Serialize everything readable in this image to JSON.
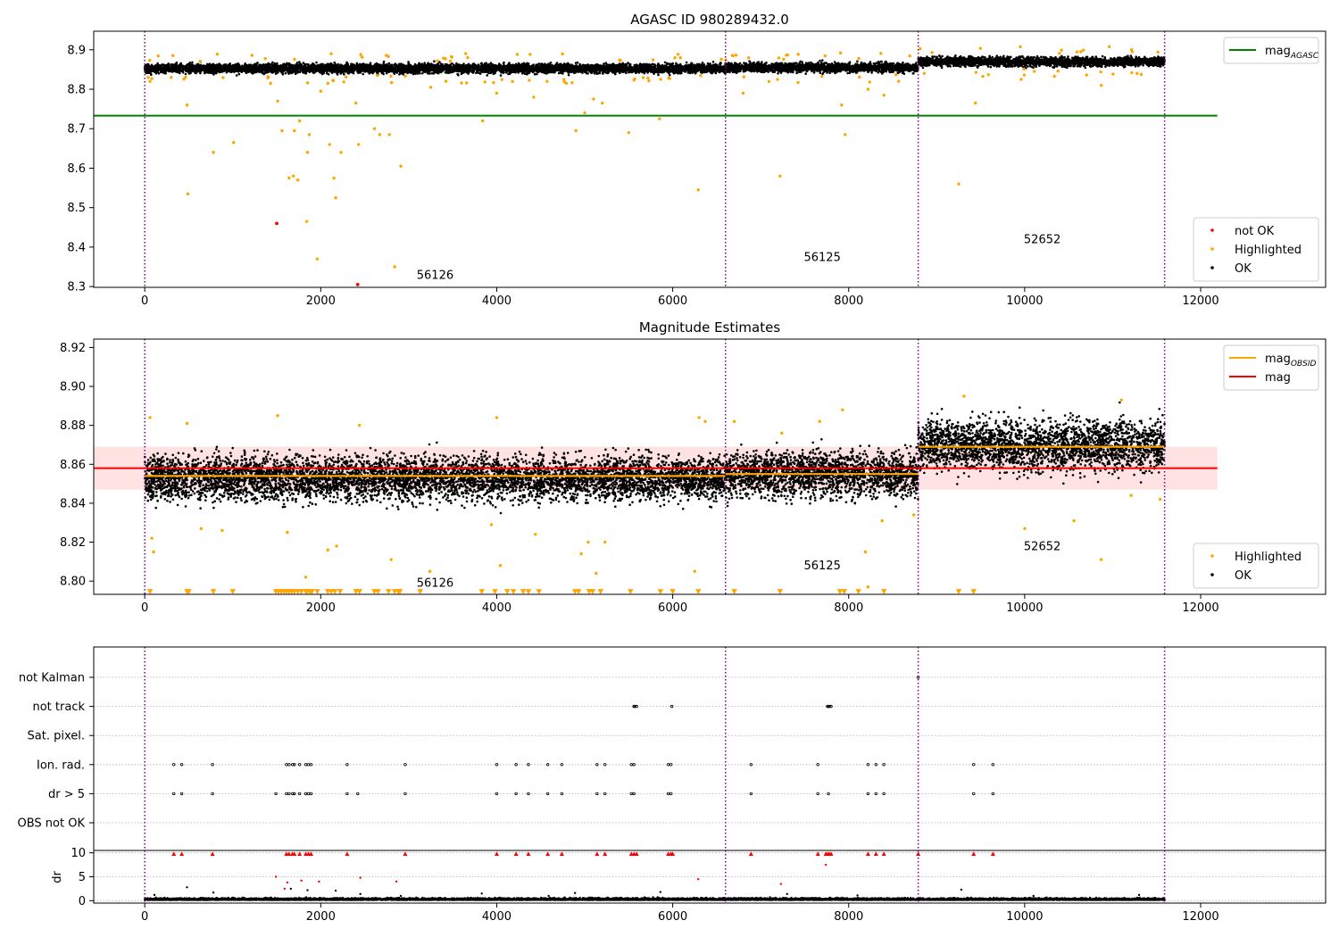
{
  "colors": {
    "ok": "#000000",
    "highlighted": "#ffa500",
    "not_ok": "#ff0000",
    "agasc_line": "#008000",
    "obsid_line": "#ffa500",
    "mag_line": "#ff0000",
    "mag_band": "#ffdddd",
    "obsid_boundary": "#800080",
    "grid": "#b0b0b0"
  },
  "chart_data": [
    {
      "id": "agasc",
      "type": "scatter",
      "title": "AGASC ID 980289432.0",
      "xlim": [
        -580,
        13420
      ],
      "ylim": [
        8.298,
        8.947
      ],
      "xticks": [
        0,
        2000,
        4000,
        6000,
        8000,
        10000,
        12000
      ],
      "xtick_labels": [
        "0",
        "2000",
        "4000",
        "6000",
        "8000",
        "10000",
        "12000"
      ],
      "yticks": [
        8.3,
        8.4,
        8.5,
        8.6,
        8.7,
        8.8,
        8.9
      ],
      "ytick_labels": [
        "8.3",
        "8.4",
        "8.5",
        "8.6",
        "8.7",
        "8.8",
        "8.9"
      ],
      "obsid_boundaries": [
        0,
        6600,
        8790,
        11590
      ],
      "obsid_labels": [
        {
          "text": "56126",
          "x": 3300,
          "y": 8.32
        },
        {
          "text": "56125",
          "x": 7700,
          "y": 8.365
        },
        {
          "text": "52652",
          "x": 10200,
          "y": 8.41
        }
      ],
      "segments": [
        {
          "x0": 0,
          "x1": 6600,
          "center": 8.853,
          "spread": 0.008
        },
        {
          "x0": 6600,
          "x1": 8790,
          "center": 8.855,
          "spread": 0.008
        },
        {
          "x0": 8790,
          "x1": 11590,
          "center": 8.87,
          "spread": 0.008
        }
      ],
      "mag_agasc": 8.733,
      "mag_agasc_x": [
        -580,
        12190
      ],
      "not_ok_points": [
        [
          1500,
          8.46
        ],
        [
          2420,
          8.305
        ]
      ],
      "highlighted_points": [
        [
          480,
          8.76
        ],
        [
          490,
          8.535
        ],
        [
          780,
          8.64
        ],
        [
          1010,
          8.665
        ],
        [
          1510,
          8.77
        ],
        [
          1560,
          8.695
        ],
        [
          1640,
          8.575
        ],
        [
          1690,
          8.58
        ],
        [
          1700,
          8.695
        ],
        [
          1740,
          8.57
        ],
        [
          1760,
          8.72
        ],
        [
          1840,
          8.465
        ],
        [
          1850,
          8.64
        ],
        [
          1870,
          8.685
        ],
        [
          1960,
          8.37
        ],
        [
          2100,
          8.66
        ],
        [
          2150,
          8.575
        ],
        [
          2170,
          8.525
        ],
        [
          2230,
          8.64
        ],
        [
          2400,
          8.765
        ],
        [
          2430,
          8.66
        ],
        [
          2610,
          8.7
        ],
        [
          2670,
          8.685
        ],
        [
          2780,
          8.685
        ],
        [
          2840,
          8.35
        ],
        [
          2910,
          8.605
        ],
        [
          3840,
          8.72
        ],
        [
          4900,
          8.695
        ],
        [
          5000,
          8.74
        ],
        [
          5500,
          8.69
        ],
        [
          5850,
          8.725
        ],
        [
          6290,
          8.545
        ],
        [
          7220,
          8.58
        ],
        [
          7960,
          8.685
        ],
        [
          9250,
          8.56
        ],
        [
          9440,
          8.765
        ],
        [
          1430,
          8.815
        ],
        [
          2080,
          8.815
        ],
        [
          3250,
          8.805
        ],
        [
          4420,
          8.78
        ],
        [
          5200,
          8.765
        ],
        [
          6800,
          8.79
        ],
        [
          7920,
          8.76
        ],
        [
          8220,
          8.8
        ],
        [
          8400,
          8.785
        ],
        [
          9960,
          8.825
        ],
        [
          10870,
          8.81
        ],
        [
          40,
          8.83
        ],
        [
          60,
          8.82
        ],
        [
          300,
          8.83
        ],
        [
          2000,
          8.795
        ],
        [
          4000,
          8.79
        ],
        [
          5100,
          8.775
        ]
      ],
      "legends": [
        {
          "position": "upper-right",
          "entries": [
            {
              "label": "mag",
              "subscript": "AGASC",
              "style": "line",
              "color_key": "agasc_line"
            }
          ]
        },
        {
          "position": "lower-right",
          "entries": [
            {
              "label": "not OK",
              "style": "dot",
              "color_key": "not_ok"
            },
            {
              "label": "Highlighted",
              "style": "dot",
              "color_key": "highlighted"
            },
            {
              "label": "OK",
              "style": "dot",
              "color_key": "ok"
            }
          ]
        }
      ]
    },
    {
      "id": "estimates",
      "type": "scatter",
      "title": "Magnitude Estimates",
      "xlim": [
        -580,
        13420
      ],
      "ylim": [
        8.7932,
        8.9243
      ],
      "xticks": [
        0,
        2000,
        4000,
        6000,
        8000,
        10000,
        12000
      ],
      "xtick_labels": [
        "0",
        "2000",
        "4000",
        "6000",
        "8000",
        "10000",
        "12000"
      ],
      "yticks": [
        8.8,
        8.82,
        8.84,
        8.86,
        8.88,
        8.9,
        8.92
      ],
      "ytick_labels": [
        "8.80",
        "8.82",
        "8.84",
        "8.86",
        "8.88",
        "8.90",
        "8.92"
      ],
      "obsid_boundaries": [
        0,
        6600,
        8790,
        11590
      ],
      "obsid_labels": [
        {
          "text": "56126",
          "x": 3300,
          "y": 8.797
        },
        {
          "text": "56125",
          "x": 7700,
          "y": 8.806
        },
        {
          "text": "52652",
          "x": 10200,
          "y": 8.816
        }
      ],
      "segments": [
        {
          "x0": 0,
          "x1": 6600,
          "center": 8.853,
          "spread": 0.008
        },
        {
          "x0": 6600,
          "x1": 8790,
          "center": 8.855,
          "spread": 0.008
        },
        {
          "x0": 8790,
          "x1": 11590,
          "center": 8.87,
          "spread": 0.009
        }
      ],
      "mag": 8.858,
      "mag_x": [
        -580,
        12190
      ],
      "mag_band": [
        8.847,
        8.869
      ],
      "mag_obsid": [
        {
          "x0": 0,
          "x1": 6600,
          "value": 8.854
        },
        {
          "x0": 6600,
          "x1": 8790,
          "value": 8.855
        },
        {
          "x0": 8790,
          "x1": 11590,
          "value": 8.869
        }
      ],
      "highlighted_points": [
        [
          60,
          8.884
        ],
        [
          80,
          8.822
        ],
        [
          100,
          8.815
        ],
        [
          480,
          8.881
        ],
        [
          640,
          8.827
        ],
        [
          880,
          8.826
        ],
        [
          1510,
          8.885
        ],
        [
          1620,
          8.825
        ],
        [
          1830,
          8.802
        ],
        [
          2080,
          8.816
        ],
        [
          2180,
          8.818
        ],
        [
          2440,
          8.88
        ],
        [
          2800,
          8.811
        ],
        [
          3240,
          8.805
        ],
        [
          3940,
          8.829
        ],
        [
          4000,
          8.884
        ],
        [
          4040,
          8.808
        ],
        [
          4440,
          8.824
        ],
        [
          4960,
          8.814
        ],
        [
          5040,
          8.82
        ],
        [
          5130,
          8.804
        ],
        [
          5230,
          8.82
        ],
        [
          6250,
          8.805
        ],
        [
          6300,
          8.884
        ],
        [
          6370,
          8.882
        ],
        [
          6700,
          8.882
        ],
        [
          7240,
          8.876
        ],
        [
          7670,
          8.882
        ],
        [
          7930,
          8.888
        ],
        [
          8190,
          8.815
        ],
        [
          8220,
          8.797
        ],
        [
          8380,
          8.831
        ],
        [
          8740,
          8.834
        ],
        [
          9310,
          8.895
        ],
        [
          10000,
          8.827
        ],
        [
          10560,
          8.831
        ],
        [
          10870,
          8.811
        ],
        [
          11100,
          8.893
        ],
        [
          11210,
          8.844
        ],
        [
          11540,
          8.842
        ]
      ],
      "lower_limit_x": [
        60,
        480,
        500,
        780,
        1000,
        1490,
        1520,
        1550,
        1580,
        1610,
        1640,
        1670,
        1700,
        1740,
        1780,
        1830,
        1850,
        1880,
        1900,
        1960,
        2080,
        2120,
        2160,
        2220,
        2400,
        2440,
        2610,
        2650,
        2770,
        2840,
        2880,
        2900,
        3130,
        3830,
        3980,
        4120,
        4190,
        4300,
        4360,
        4480,
        4890,
        4930,
        5050,
        5090,
        5180,
        5520,
        5860,
        6000,
        6290,
        6700,
        7220,
        7900,
        7950,
        8110,
        8400,
        9250,
        9420
      ],
      "lower_limit_y": 8.7945,
      "legends": [
        {
          "position": "upper-right",
          "entries": [
            {
              "label": "mag",
              "subscript": "OBSID",
              "style": "line",
              "color_key": "obsid_line"
            },
            {
              "label": "mag",
              "style": "line",
              "color_key": "mag_line"
            }
          ]
        },
        {
          "position": "lower-right",
          "entries": [
            {
              "label": "Highlighted",
              "style": "dot",
              "color_key": "highlighted"
            },
            {
              "label": "OK",
              "style": "dot",
              "color_key": "ok"
            }
          ]
        }
      ]
    },
    {
      "id": "flags",
      "type": "scatter",
      "title": "",
      "xlim": [
        -580,
        13420
      ],
      "categories": [
        "OBS not OK",
        "dr > 5",
        "Ion. rad.",
        "Sat. pixel.",
        "not track",
        "not Kalman"
      ],
      "points": {
        "Ion. rad.": [
          330,
          420,
          770,
          1610,
          1640,
          1680,
          1700,
          1760,
          1830,
          1860,
          1890,
          2300,
          2960,
          4000,
          4220,
          4360,
          4580,
          4740,
          5140,
          5230,
          5530,
          5560,
          5950,
          5980,
          6890,
          7650,
          8220,
          8310,
          8400,
          9420,
          9640
        ],
        "dr > 5": [
          330,
          420,
          770,
          1490,
          1610,
          1640,
          1680,
          1700,
          1760,
          1830,
          1860,
          1890,
          2300,
          2420,
          2960,
          4000,
          4220,
          4360,
          4580,
          4740,
          5140,
          5230,
          5530,
          5560,
          5950,
          5980,
          6890,
          7650,
          7770,
          8220,
          8310,
          8400,
          9420,
          9640
        ],
        "not track": [
          5560,
          5570,
          5590,
          5990,
          7760,
          7770,
          7780,
          7800
        ],
        "not Kalman": [
          8790
        ]
      }
    },
    {
      "id": "dr",
      "type": "scatter",
      "title": "",
      "xlim": [
        -580,
        13420
      ],
      "ylim": [
        -0.5,
        10.5
      ],
      "xticks": [
        0,
        2000,
        4000,
        6000,
        8000,
        10000,
        12000
      ],
      "xtick_labels": [
        "0",
        "2000",
        "4000",
        "6000",
        "8000",
        "10000",
        "12000"
      ],
      "yticks": [
        0,
        5,
        10
      ],
      "ytick_labels": [
        "0",
        "5",
        "10"
      ],
      "ylabel": "dr",
      "capped_points_x": [
        330,
        420,
        770,
        1610,
        1640,
        1680,
        1700,
        1760,
        1830,
        1860,
        1890,
        2300,
        2960,
        4000,
        4220,
        4360,
        4580,
        4740,
        5140,
        5230,
        5530,
        5560,
        5590,
        5950,
        5980,
        6000,
        6890,
        7650,
        7740,
        7760,
        7780,
        7800,
        8220,
        8310,
        8400,
        8790,
        9420,
        9640
      ],
      "capped_y": 9.8,
      "red_points": [
        [
          1490,
          5.0
        ],
        [
          1620,
          3.8
        ],
        [
          1780,
          4.2
        ],
        [
          1980,
          4.0
        ],
        [
          2450,
          4.8
        ],
        [
          6290,
          4.5
        ],
        [
          7230,
          3.5
        ],
        [
          7740,
          7.5
        ],
        [
          2860,
          4.0
        ],
        [
          1590,
          2.5
        ]
      ],
      "black_outliers": [
        [
          110,
          1.2
        ],
        [
          480,
          2.8
        ],
        [
          780,
          1.7
        ],
        [
          1660,
          2.5
        ],
        [
          1850,
          2.2
        ],
        [
          2170,
          2.1
        ],
        [
          2450,
          1.4
        ],
        [
          2910,
          1.0
        ],
        [
          3830,
          1.5
        ],
        [
          4590,
          1.0
        ],
        [
          4890,
          1.6
        ],
        [
          5860,
          1.8
        ],
        [
          7300,
          1.4
        ],
        [
          8100,
          1.1
        ],
        [
          9280,
          2.3
        ],
        [
          10100,
          1.0
        ],
        [
          11300,
          1.2
        ]
      ]
    }
  ]
}
